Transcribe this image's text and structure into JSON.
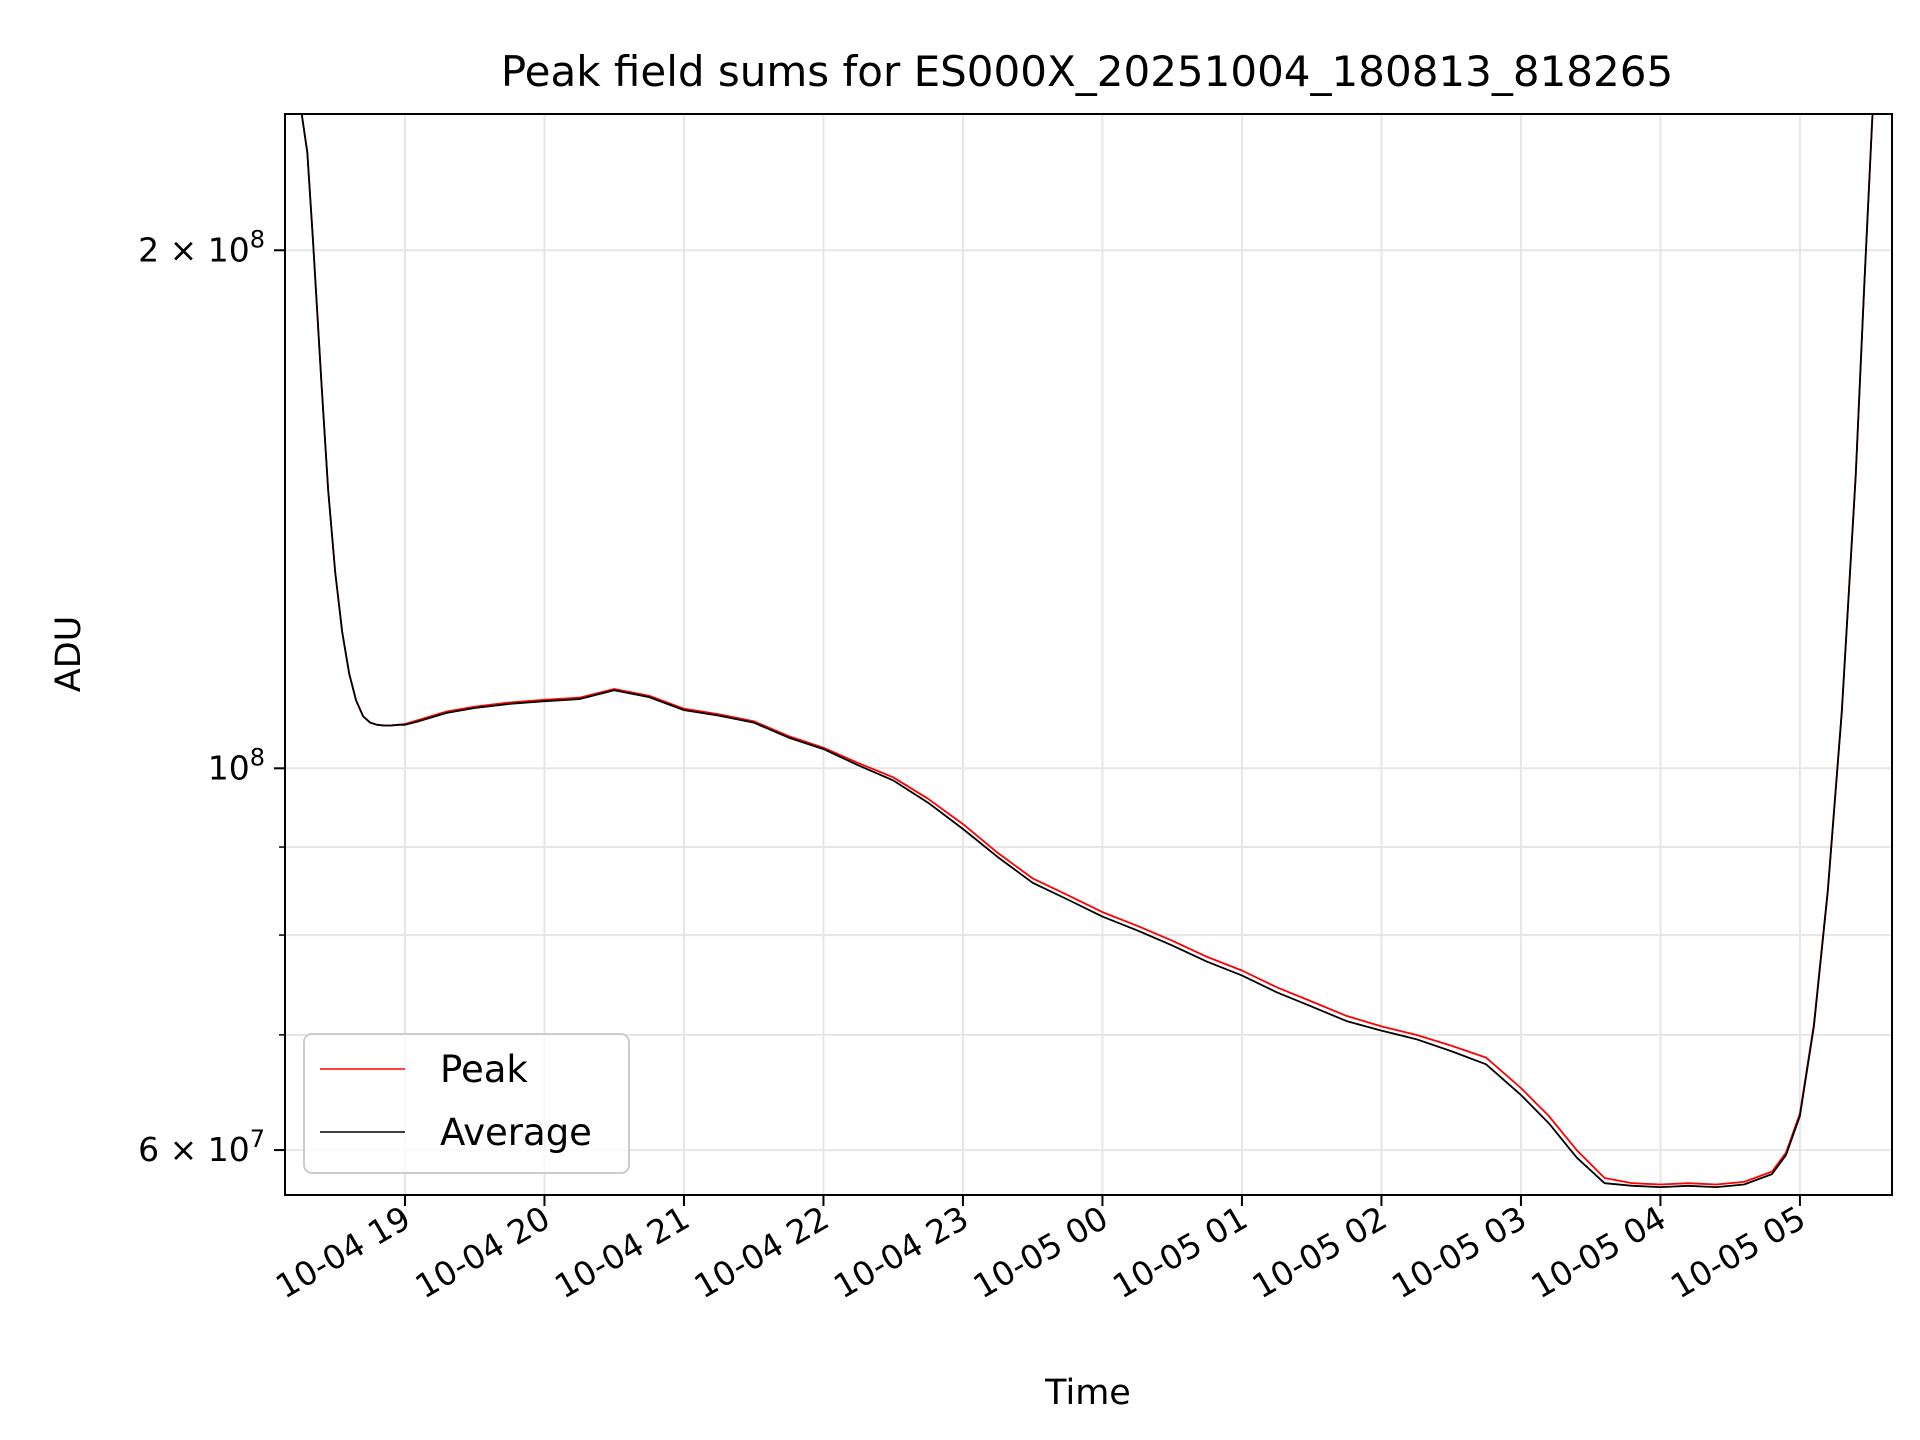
{
  "chart_data": {
    "type": "line",
    "title": "Peak field sums for ES000X_20251004_180813_818265",
    "xlabel": "Time",
    "ylabel": "ADU",
    "yscale": "log",
    "ylim": [
      56500000,
      240000000
    ],
    "xlim_hours": [
      -0.86,
      10.66
    ],
    "x_unit": "hours since 10-04 19:00",
    "grid": true,
    "legend_location": "lower left",
    "x_ticks": [
      {
        "hour": 0,
        "label": "10-04 19"
      },
      {
        "hour": 1,
        "label": "10-04 20"
      },
      {
        "hour": 2,
        "label": "10-04 21"
      },
      {
        "hour": 3,
        "label": "10-04 22"
      },
      {
        "hour": 4,
        "label": "10-04 23"
      },
      {
        "hour": 5,
        "label": "10-05 00"
      },
      {
        "hour": 6,
        "label": "10-05 01"
      },
      {
        "hour": 7,
        "label": "10-05 02"
      },
      {
        "hour": 8,
        "label": "10-05 03"
      },
      {
        "hour": 9,
        "label": "10-05 04"
      },
      {
        "hour": 10,
        "label": "10-05 05"
      }
    ],
    "y_ticks": [
      {
        "value": 60000000,
        "label": "6 × 10",
        "exponent": "7"
      },
      {
        "value": 100000000,
        "label": "10",
        "exponent": "8"
      },
      {
        "value": 200000000,
        "label": "2 × 10",
        "exponent": "8"
      }
    ],
    "y_minor_ticks": [
      70000000,
      80000000,
      90000000
    ],
    "series": [
      {
        "name": "Peak",
        "color": "#ff0000",
        "x": [
          -0.74,
          -0.7,
          -0.66,
          -0.6,
          -0.55,
          -0.5,
          -0.45,
          -0.4,
          -0.35,
          -0.3,
          -0.25,
          -0.2,
          -0.15,
          -0.1,
          -0.05,
          0.0,
          0.1,
          0.2,
          0.3,
          0.5,
          0.75,
          1.0,
          1.25,
          1.5,
          1.75,
          2.0,
          2.25,
          2.5,
          2.75,
          3.0,
          3.25,
          3.5,
          3.75,
          4.0,
          4.25,
          4.5,
          4.75,
          5.0,
          5.25,
          5.5,
          5.75,
          6.0,
          6.25,
          6.5,
          6.75,
          7.0,
          7.25,
          7.5,
          7.75,
          8.0,
          8.2,
          8.4,
          8.6,
          8.8,
          9.0,
          9.2,
          9.4,
          9.6,
          9.8,
          9.9,
          10.0,
          10.1,
          10.2,
          10.3,
          10.4,
          10.46,
          10.52
        ],
        "values": [
          240000000,
          228000000,
          203000000,
          168000000,
          145000000,
          130000000,
          120000000,
          113500000,
          109500000,
          107200000,
          106300000,
          106000000,
          105900000,
          105900000,
          106000000,
          106100000,
          106700000,
          107300000,
          107900000,
          108600000,
          109200000,
          109600000,
          109900000,
          111200000,
          110200000,
          108300000,
          107500000,
          106500000,
          104400000,
          102800000,
          100700000,
          98800000,
          96000000,
          92800000,
          89300000,
          86300000,
          84400000,
          82500000,
          81000000,
          79400000,
          77700000,
          76300000,
          74600000,
          73200000,
          71800000,
          70800000,
          70000000,
          69000000,
          67900000,
          65200000,
          62800000,
          60000000,
          57800000,
          57400000,
          57300000,
          57400000,
          57300000,
          57500000,
          58300000,
          59800000,
          63000000,
          71000000,
          85000000,
          108000000,
          148000000,
          190000000,
          240000000
        ]
      },
      {
        "name": "Average",
        "color": "#000000",
        "x": [
          -0.74,
          -0.7,
          -0.66,
          -0.6,
          -0.55,
          -0.5,
          -0.45,
          -0.4,
          -0.35,
          -0.3,
          -0.25,
          -0.2,
          -0.15,
          -0.1,
          -0.05,
          0.0,
          0.1,
          0.2,
          0.3,
          0.5,
          0.75,
          1.0,
          1.25,
          1.5,
          1.75,
          2.0,
          2.25,
          2.5,
          2.75,
          3.0,
          3.25,
          3.5,
          3.75,
          4.0,
          4.25,
          4.5,
          4.75,
          5.0,
          5.25,
          5.5,
          5.75,
          6.0,
          6.25,
          6.5,
          6.75,
          7.0,
          7.25,
          7.5,
          7.75,
          8.0,
          8.2,
          8.4,
          8.6,
          8.8,
          9.0,
          9.2,
          9.4,
          9.6,
          9.8,
          9.9,
          10.0,
          10.1,
          10.2,
          10.3,
          10.4,
          10.46,
          10.52
        ],
        "values": [
          240000000,
          228000000,
          203000000,
          168000000,
          145000000,
          130000000,
          120000000,
          113500000,
          109500000,
          107200000,
          106300000,
          106000000,
          105900000,
          105900000,
          106000000,
          106000000,
          106500000,
          107100000,
          107700000,
          108400000,
          109000000,
          109400000,
          109700000,
          111000000,
          110000000,
          108100000,
          107300000,
          106300000,
          104200000,
          102600000,
          100400000,
          98400000,
          95500000,
          92200000,
          88800000,
          85800000,
          83900000,
          82000000,
          80500000,
          78900000,
          77200000,
          75800000,
          74100000,
          72700000,
          71300000,
          70400000,
          69600000,
          68500000,
          67300000,
          64600000,
          62200000,
          59400000,
          57400000,
          57200000,
          57100000,
          57200000,
          57100000,
          57300000,
          58100000,
          59600000,
          62800000,
          70800000,
          84800000,
          107800000,
          147800000,
          189800000,
          240000000
        ]
      }
    ],
    "legend": {
      "entries": [
        "Peak",
        "Average"
      ]
    }
  }
}
